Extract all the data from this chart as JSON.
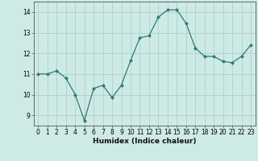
{
  "x": [
    0,
    1,
    2,
    3,
    4,
    5,
    6,
    7,
    8,
    9,
    10,
    11,
    12,
    13,
    14,
    15,
    16,
    17,
    18,
    19,
    20,
    21,
    22,
    23
  ],
  "y": [
    11.0,
    11.0,
    11.15,
    10.8,
    10.0,
    8.75,
    10.3,
    10.45,
    9.85,
    10.45,
    11.65,
    12.75,
    12.85,
    13.75,
    14.1,
    14.1,
    13.45,
    12.25,
    11.85,
    11.85,
    11.6,
    11.55,
    11.85,
    12.4
  ],
  "line_color": "#2e7d6e",
  "marker": "D",
  "marker_size": 2.0,
  "bg_color": "#ceeae7",
  "grid_color": "#b0ceca",
  "axis_color": "#555555",
  "xlabel": "Humidex (Indice chaleur)",
  "ylabel": "",
  "xlim": [
    -0.5,
    23.5
  ],
  "ylim": [
    8.5,
    14.5
  ],
  "yticks": [
    9,
    10,
    11,
    12,
    13,
    14
  ],
  "xticks": [
    0,
    1,
    2,
    3,
    4,
    5,
    6,
    7,
    8,
    9,
    10,
    11,
    12,
    13,
    14,
    15,
    16,
    17,
    18,
    19,
    20,
    21,
    22,
    23
  ],
  "xlabel_fontsize": 6.5,
  "tick_fontsize": 5.5,
  "linewidth": 0.9
}
